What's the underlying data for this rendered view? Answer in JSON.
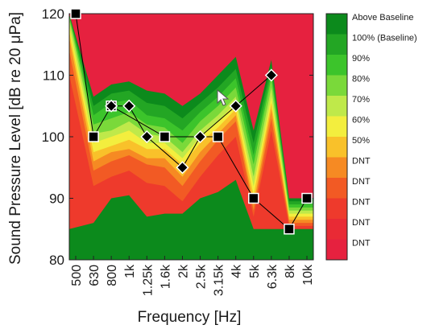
{
  "chart_data": {
    "type": "area",
    "xlabel": "Frequency [Hz]",
    "ylabel": "Sound Pressure Level [dB re 20 μPa]",
    "ylim": [
      80,
      120
    ],
    "yticks": [
      80,
      90,
      100,
      110,
      120
    ],
    "categories": [
      "500",
      "630",
      "800",
      "1k",
      "1.25k",
      "1.6k",
      "2k",
      "2.5k",
      "3.15k",
      "4k",
      "5k",
      "6.3k",
      "8k",
      "10k"
    ],
    "series": [
      {
        "marker_style": "square",
        "points": [
          {
            "x": "500",
            "y": 120
          },
          {
            "x": "630",
            "y": 100
          },
          {
            "x": "800",
            "y": 105
          },
          {
            "x": "1.6k",
            "y": 100
          },
          {
            "x": "3.15k",
            "y": 100
          },
          {
            "x": "5k",
            "y": 90
          },
          {
            "x": "8k",
            "y": 85
          },
          {
            "x": "10k",
            "y": 90
          }
        ]
      },
      {
        "marker_style": "diamond",
        "points": [
          {
            "x": "800",
            "y": 105
          },
          {
            "x": "1k",
            "y": 105
          },
          {
            "x": "1.25k",
            "y": 100
          },
          {
            "x": "2k",
            "y": 95
          },
          {
            "x": "2.5k",
            "y": 100
          },
          {
            "x": "4k",
            "y": 105
          },
          {
            "x": "6.3k",
            "y": 110
          }
        ]
      }
    ],
    "contour_boundaries_db": {
      "description_levels_from_bottom": [
        "Above Baseline",
        "100% (Baseline)",
        "90%",
        "80%",
        "70%",
        "60%",
        "50%",
        "DNT",
        "DNT",
        "DNT",
        "DNT",
        "DNT"
      ],
      "boundaries": [
        [
          85.0,
          86.0,
          90.0,
          90.5,
          87.0,
          87.5,
          87.5,
          90.0,
          91.0,
          93.0,
          85.0,
          85.0,
          85.0,
          85.0
        ],
        [
          110.0,
          92.0,
          93.5,
          94.5,
          92.5,
          92.0,
          89.5,
          93.5,
          97.0,
          100.0,
          87.0,
          101.0,
          85.5,
          85.5
        ],
        [
          114.0,
          94.5,
          96.0,
          97.0,
          95.5,
          95.0,
          92.0,
          96.0,
          99.5,
          102.5,
          88.0,
          103.0,
          86.0,
          86.0
        ],
        [
          116.0,
          96.0,
          97.5,
          98.0,
          96.5,
          96.5,
          93.5,
          97.5,
          100.5,
          103.5,
          89.0,
          104.5,
          86.5,
          86.5
        ],
        [
          117.0,
          97.5,
          98.5,
          99.5,
          98.0,
          98.0,
          95.5,
          99.0,
          101.5,
          104.5,
          90.5,
          105.5,
          87.0,
          87.0
        ],
        [
          118.0,
          99.0,
          100.0,
          101.0,
          99.0,
          99.0,
          96.5,
          100.0,
          102.5,
          105.5,
          92.0,
          106.5,
          87.5,
          87.5
        ],
        [
          119.0,
          100.5,
          101.0,
          102.5,
          100.5,
          100.0,
          97.5,
          101.0,
          103.5,
          106.5,
          93.5,
          108.0,
          88.0,
          88.0
        ],
        [
          119.5,
          102.0,
          103.0,
          104.0,
          102.0,
          101.5,
          99.0,
          102.5,
          105.0,
          108.0,
          95.5,
          109.5,
          88.5,
          88.5
        ],
        [
          119.7,
          103.5,
          105.5,
          106.0,
          103.5,
          103.0,
          101.0,
          104.0,
          106.5,
          109.5,
          97.0,
          110.5,
          89.0,
          89.0
        ],
        [
          119.8,
          105.0,
          107.0,
          107.5,
          105.5,
          105.0,
          103.0,
          105.5,
          108.0,
          111.0,
          99.0,
          111.5,
          89.5,
          89.5
        ],
        [
          119.9,
          106.5,
          108.5,
          109.0,
          107.5,
          107.0,
          105.0,
          107.0,
          110.0,
          113.0,
          101.0,
          112.5,
          90.0,
          90.0
        ]
      ]
    },
    "colorbar": {
      "labels": [
        "Above Baseline",
        "100% (Baseline)",
        "90%",
        "80%",
        "70%",
        "60%",
        "50%",
        "DNT",
        "DNT",
        "DNT",
        "DNT",
        "DNT"
      ],
      "colors": [
        "#0c8a1c",
        "#23a624",
        "#3cc42b",
        "#7ad93a",
        "#bfe94a",
        "#f3ee3e",
        "#f9c12a",
        "#f68a23",
        "#f25a24",
        "#ee3a2c",
        "#e92a35",
        "#e6213f"
      ]
    },
    "background_color": "#e6213f"
  }
}
